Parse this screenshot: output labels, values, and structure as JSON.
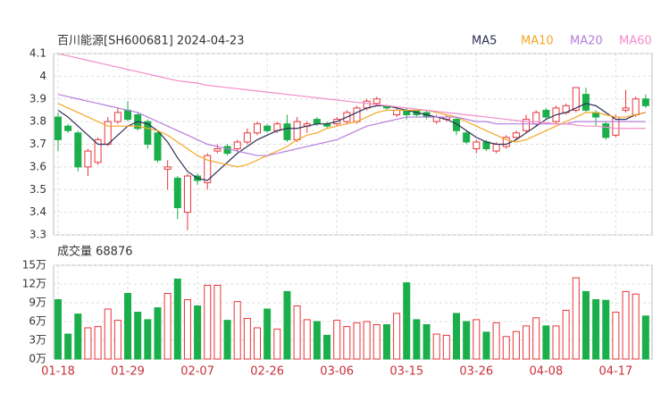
{
  "chart_data": [
    {
      "type": "candlestick",
      "title": "百川能源[SH600681] 2024-04-23",
      "up_color": "#e8353b",
      "down_color": "#1aaf4a",
      "ylim": [
        3.3,
        4.1
      ],
      "yticks": [
        3.3,
        3.4,
        3.5,
        3.6,
        3.7,
        3.8,
        3.9,
        4,
        4.1
      ],
      "grid": true,
      "open": [
        3.82,
        3.78,
        3.75,
        3.6,
        3.62,
        3.7,
        3.8,
        3.85,
        3.83,
        3.8,
        3.75,
        3.59,
        3.55,
        3.4,
        3.56,
        3.53,
        3.67,
        3.69,
        3.68,
        3.71,
        3.75,
        3.78,
        3.76,
        3.79,
        3.72,
        3.78,
        3.81,
        3.79,
        3.79,
        3.8,
        3.8,
        3.86,
        3.88,
        3.87,
        3.83,
        3.85,
        3.85,
        3.84,
        3.8,
        3.81,
        3.81,
        3.75,
        3.68,
        3.71,
        3.67,
        3.69,
        3.73,
        3.76,
        3.79,
        3.85,
        3.8,
        3.84,
        3.85,
        3.92,
        3.84,
        3.79,
        3.74,
        3.85,
        3.83,
        3.9
      ],
      "high": [
        3.84,
        3.79,
        3.76,
        3.68,
        3.73,
        3.82,
        3.86,
        3.89,
        3.84,
        3.81,
        3.76,
        3.63,
        3.56,
        3.57,
        3.57,
        3.66,
        3.7,
        3.7,
        3.72,
        3.77,
        3.8,
        3.79,
        3.8,
        3.83,
        3.82,
        3.8,
        3.82,
        3.8,
        3.82,
        3.85,
        3.87,
        3.9,
        3.91,
        3.87,
        3.86,
        3.86,
        3.85,
        3.85,
        3.83,
        3.83,
        3.82,
        3.76,
        3.72,
        3.72,
        3.71,
        3.74,
        3.76,
        3.83,
        3.85,
        3.86,
        3.87,
        3.88,
        3.95,
        3.95,
        3.85,
        3.8,
        3.83,
        3.94,
        3.91,
        3.92
      ],
      "low": [
        3.67,
        3.75,
        3.58,
        3.56,
        3.61,
        3.69,
        3.79,
        3.8,
        3.76,
        3.68,
        3.62,
        3.5,
        3.37,
        3.32,
        3.52,
        3.5,
        3.66,
        3.65,
        3.67,
        3.7,
        3.74,
        3.75,
        3.75,
        3.71,
        3.71,
        3.75,
        3.78,
        3.77,
        3.78,
        3.79,
        3.79,
        3.85,
        3.87,
        3.85,
        3.82,
        3.81,
        3.82,
        3.81,
        3.79,
        3.8,
        3.74,
        3.7,
        3.66,
        3.67,
        3.66,
        3.68,
        3.72,
        3.75,
        3.78,
        3.81,
        3.79,
        3.83,
        3.84,
        3.84,
        3.78,
        3.72,
        3.73,
        3.84,
        3.82,
        3.86
      ],
      "close": [
        3.72,
        3.76,
        3.6,
        3.67,
        3.72,
        3.8,
        3.84,
        3.81,
        3.77,
        3.7,
        3.63,
        3.6,
        3.42,
        3.56,
        3.54,
        3.65,
        3.68,
        3.66,
        3.71,
        3.75,
        3.79,
        3.76,
        3.79,
        3.72,
        3.8,
        3.79,
        3.79,
        3.78,
        3.81,
        3.84,
        3.86,
        3.89,
        3.9,
        3.86,
        3.85,
        3.83,
        3.83,
        3.82,
        3.82,
        3.82,
        3.76,
        3.71,
        3.71,
        3.68,
        3.7,
        3.73,
        3.75,
        3.81,
        3.84,
        3.82,
        3.86,
        3.87,
        3.95,
        3.85,
        3.82,
        3.73,
        3.82,
        3.86,
        3.9,
        3.87
      ],
      "series": [
        {
          "name": "MA5",
          "color": "#2b2f55",
          "values": [
            3.85,
            3.82,
            3.78,
            3.74,
            3.7,
            3.7,
            3.74,
            3.78,
            3.8,
            3.79,
            3.76,
            3.71,
            3.64,
            3.58,
            3.55,
            3.54,
            3.58,
            3.62,
            3.66,
            3.69,
            3.72,
            3.74,
            3.76,
            3.77,
            3.77,
            3.78,
            3.79,
            3.79,
            3.8,
            3.82,
            3.84,
            3.86,
            3.87,
            3.87,
            3.86,
            3.85,
            3.84,
            3.83,
            3.82,
            3.81,
            3.79,
            3.76,
            3.73,
            3.71,
            3.7,
            3.7,
            3.72,
            3.75,
            3.78,
            3.81,
            3.83,
            3.84,
            3.86,
            3.88,
            3.87,
            3.84,
            3.81,
            3.81,
            3.83,
            3.84
          ]
        },
        {
          "name": "MA10",
          "color": "#f5a623",
          "values": [
            3.88,
            3.86,
            3.84,
            3.82,
            3.8,
            3.78,
            3.78,
            3.78,
            3.78,
            3.77,
            3.76,
            3.74,
            3.71,
            3.68,
            3.65,
            3.63,
            3.62,
            3.61,
            3.6,
            3.61,
            3.63,
            3.65,
            3.67,
            3.69,
            3.72,
            3.74,
            3.75,
            3.77,
            3.78,
            3.79,
            3.8,
            3.82,
            3.84,
            3.85,
            3.85,
            3.85,
            3.85,
            3.85,
            3.84,
            3.83,
            3.82,
            3.8,
            3.78,
            3.76,
            3.74,
            3.72,
            3.71,
            3.72,
            3.74,
            3.76,
            3.78,
            3.8,
            3.82,
            3.84,
            3.84,
            3.83,
            3.82,
            3.82,
            3.83,
            3.84
          ]
        },
        {
          "name": "MA20",
          "color": "#b57edc",
          "values": [
            3.92,
            3.91,
            3.9,
            3.89,
            3.88,
            3.87,
            3.86,
            3.85,
            3.84,
            3.82,
            3.8,
            3.78,
            3.76,
            3.74,
            3.72,
            3.7,
            3.69,
            3.68,
            3.67,
            3.66,
            3.65,
            3.65,
            3.66,
            3.67,
            3.68,
            3.69,
            3.7,
            3.71,
            3.72,
            3.74,
            3.76,
            3.78,
            3.79,
            3.8,
            3.81,
            3.82,
            3.82,
            3.82,
            3.82,
            3.82,
            3.82,
            3.81,
            3.8,
            3.8,
            3.79,
            3.79,
            3.79,
            3.79,
            3.79,
            3.79,
            3.79,
            3.79,
            3.8,
            3.8,
            3.8,
            3.8,
            3.8,
            3.8,
            3.8,
            3.8
          ]
        },
        {
          "name": "MA60",
          "color": "#f28ccb",
          "values": [
            4.1,
            4.09,
            4.08,
            4.07,
            4.06,
            4.05,
            4.04,
            4.03,
            4.02,
            4.01,
            4.0,
            3.99,
            3.98,
            3.975,
            3.97,
            3.96,
            3.955,
            3.95,
            3.945,
            3.94,
            3.935,
            3.93,
            3.925,
            3.92,
            3.915,
            3.91,
            3.905,
            3.9,
            3.895,
            3.89,
            3.885,
            3.88,
            3.875,
            3.87,
            3.865,
            3.86,
            3.855,
            3.85,
            3.845,
            3.84,
            3.835,
            3.83,
            3.825,
            3.82,
            3.815,
            3.81,
            3.805,
            3.8,
            3.8,
            3.795,
            3.79,
            3.79,
            3.785,
            3.78,
            3.78,
            3.775,
            3.77,
            3.77,
            3.77,
            3.77
          ]
        }
      ]
    },
    {
      "type": "bar",
      "title": "成交量 68876",
      "ylim": [
        0,
        15
      ],
      "yticks": [
        {
          "value": 0,
          "label": "0万"
        },
        {
          "value": 3,
          "label": "3万"
        },
        {
          "value": 6,
          "label": "6万"
        },
        {
          "value": 9,
          "label": "9万"
        },
        {
          "value": 12,
          "label": "12万"
        },
        {
          "value": 15,
          "label": "15万"
        }
      ],
      "grid": true,
      "categories": [
        "01-18",
        null,
        null,
        null,
        null,
        null,
        null,
        "01-29",
        null,
        null,
        null,
        null,
        null,
        null,
        "02-07",
        null,
        null,
        null,
        null,
        null,
        null,
        "02-26",
        null,
        null,
        null,
        null,
        null,
        null,
        "03-06",
        null,
        null,
        null,
        null,
        null,
        null,
        "03-15",
        null,
        null,
        null,
        null,
        null,
        null,
        "03-26",
        null,
        null,
        null,
        null,
        null,
        null,
        "04-08",
        null,
        null,
        null,
        null,
        null,
        null,
        "04-17",
        null,
        null,
        null
      ],
      "values": [
        9.5,
        4,
        7.2,
        5,
        5.2,
        8,
        6.2,
        10.5,
        7.5,
        6.3,
        8.2,
        10.5,
        12.8,
        9.5,
        8.5,
        11.8,
        11.8,
        6.2,
        9.2,
        6.5,
        5,
        8,
        4.8,
        10.8,
        8.5,
        6.3,
        6,
        3.8,
        6.2,
        5.2,
        5.8,
        6,
        5.5,
        5.5,
        7.3,
        12.2,
        6.3,
        5.5,
        4,
        3.8,
        7.3,
        6,
        6.3,
        4.3,
        5.8,
        3.6,
        4.4,
        5.3,
        6.6,
        5.3,
        5.3,
        7.8,
        13,
        10.8,
        9.5,
        9.4,
        7.5,
        10.8,
        10.4,
        6.89
      ]
    }
  ]
}
